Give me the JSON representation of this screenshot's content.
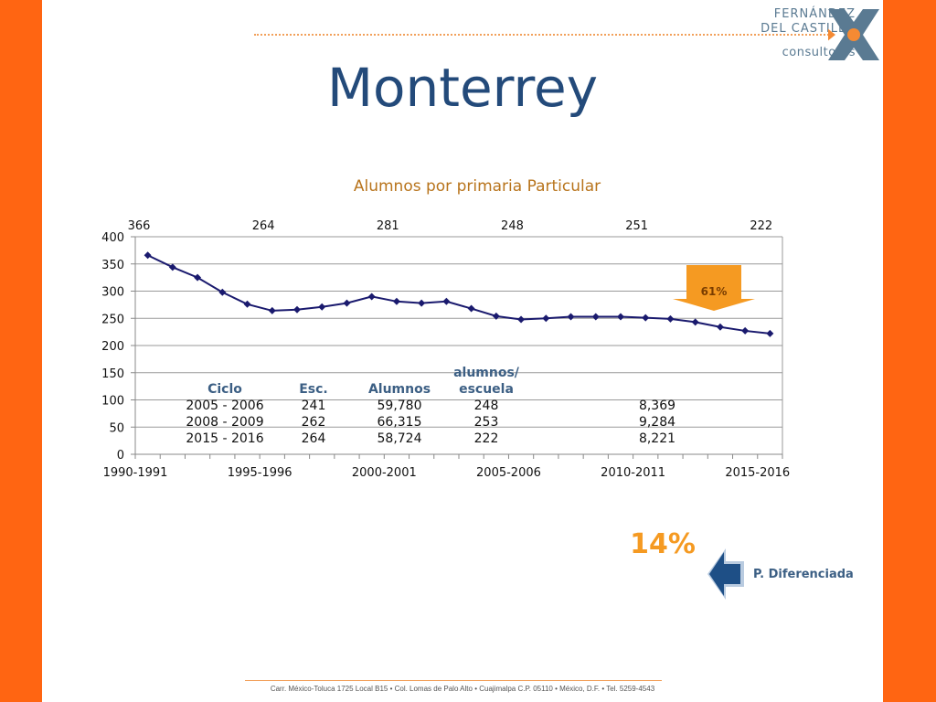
{
  "brand": {
    "line1": "FERNÁNDEZ",
    "line2": "DEL CASTILLO",
    "line3": "consultores",
    "colors": {
      "primary": "#5a7a92",
      "accent": "#f58a33"
    }
  },
  "page_title": "Monterrey",
  "chart_data": {
    "type": "line",
    "title": "Alumnos por primaria Particular",
    "xlabel": "",
    "ylabel": "",
    "ylim": [
      0,
      400
    ],
    "yticks": [
      0,
      50,
      100,
      150,
      200,
      250,
      300,
      350,
      400
    ],
    "grid": true,
    "line_color": "#1a1a6e",
    "tick_labels": [
      "1990-1991",
      "1995-1996",
      "2000-2001",
      "2005-2006",
      "2010-2011",
      "2015-2016"
    ],
    "tick_label_indices": [
      0,
      5,
      10,
      15,
      20,
      25
    ],
    "x": [
      "1990-1991",
      "1991-1992",
      "1992-1993",
      "1993-1994",
      "1994-1995",
      "1995-1996",
      "1996-1997",
      "1997-1998",
      "1998-1999",
      "1999-2000",
      "2000-2001",
      "2001-2002",
      "2002-2003",
      "2003-2004",
      "2004-2005",
      "2005-2006",
      "2006-2007",
      "2007-2008",
      "2008-2009",
      "2009-2010",
      "2010-2011",
      "2011-2012",
      "2012-2013",
      "2013-2014",
      "2014-2015",
      "2015-2016"
    ],
    "series": [
      {
        "values": [
          366,
          344,
          325,
          298,
          276,
          264,
          266,
          271,
          278,
          290,
          281,
          278,
          281,
          268,
          254,
          248,
          250,
          253,
          253,
          253,
          251,
          249,
          243,
          234,
          227,
          222
        ]
      }
    ],
    "top_labels": [
      "366",
      "264",
      "281",
      "248",
      "251",
      "222"
    ],
    "callout": {
      "label": "61%",
      "color": "#f59a22"
    }
  },
  "table": {
    "headers": [
      "Ciclo",
      "Esc.",
      "Alumnos",
      "alumnos/\nescuela"
    ],
    "header_line1_col4": "alumnos/",
    "header_line2_col4": "escuela",
    "rows": [
      [
        "2005 - 2006",
        "241",
        "59,780",
        "248",
        "8,369"
      ],
      [
        "2008 - 2009",
        "262",
        "66,315",
        "253",
        "9,284"
      ],
      [
        "2015 - 2016",
        "264",
        "58,724",
        "222",
        "8,221"
      ]
    ]
  },
  "highlight_pct": "14%",
  "p_diferenciada": "P. Diferenciada",
  "footer": "Carr. México-Toluca 1725 Local B15 • Col. Lomas de Palo Alto • Cuajimalpa C.P. 05110 • México, D.F. • Tel. 5259-4543"
}
